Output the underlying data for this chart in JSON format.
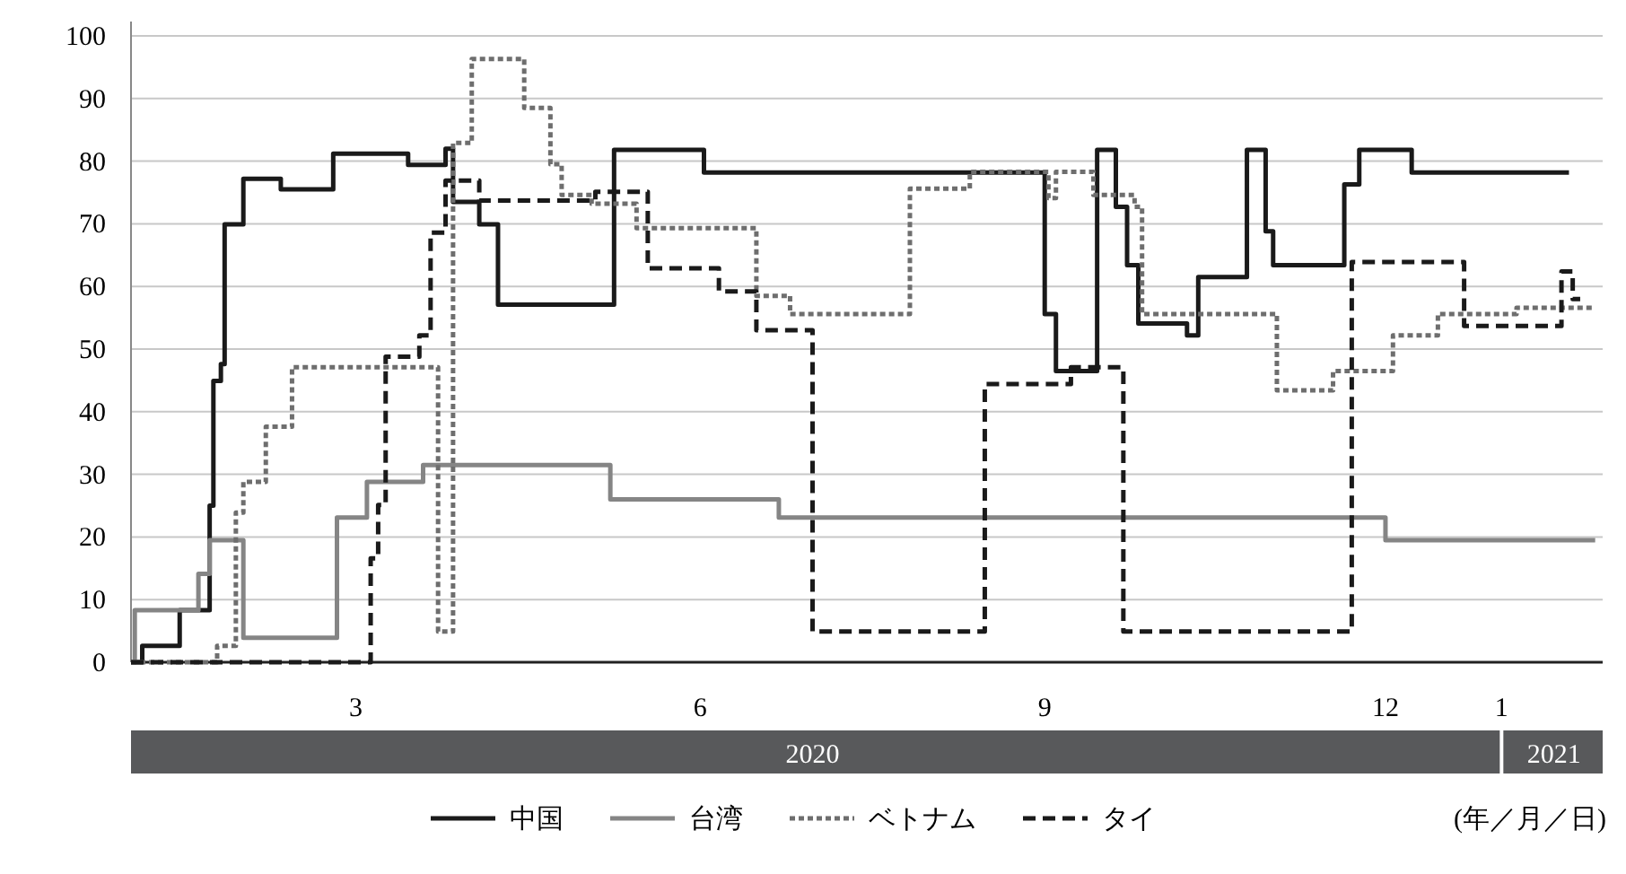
{
  "chart_data": {
    "type": "step",
    "xlabel": "(年／月／日)",
    "legend": "bottom",
    "grid": "y",
    "xlim": [
      "2020-01-01",
      "2021-01-28"
    ],
    "xticks": [
      {
        "value": "2020-03-01",
        "label": "3"
      },
      {
        "value": "2020-06-01",
        "label": "6"
      },
      {
        "value": "2020-09-01",
        "label": "9"
      },
      {
        "value": "2020-12-01",
        "label": "12"
      },
      {
        "value": "2021-01-01",
        "label": "1"
      }
    ],
    "x2lim": [
      "2020-01-01",
      "2021-01-28"
    ],
    "x2ticks": [
      {
        "value": "2020-07-01",
        "label": "2020"
      },
      {
        "value": "2021-01-15",
        "label": "2021"
      }
    ],
    "ylim": [
      0,
      100
    ],
    "yticks": [
      0,
      10,
      20,
      30,
      40,
      50,
      60,
      70,
      80,
      90,
      100
    ],
    "series": [
      {
        "name": "中国",
        "color": "#1a1a1a",
        "line_style": "solid",
        "x": [
          "2020-01-01",
          "2020-01-04",
          "2020-01-14",
          "2020-01-22",
          "2020-01-23",
          "2020-01-25",
          "2020-01-26",
          "2020-01-31",
          "2020-02-10",
          "2020-02-24",
          "2020-03-15",
          "2020-03-25",
          "2020-03-27",
          "2020-04-03",
          "2020-04-08",
          "2020-05-09",
          "2020-06-02",
          "2020-09-01",
          "2020-09-04",
          "2020-09-15",
          "2020-09-20",
          "2020-09-23",
          "2020-09-26",
          "2020-10-09",
          "2020-10-12",
          "2020-10-25",
          "2020-10-30",
          "2020-11-01",
          "2020-11-20",
          "2020-11-24",
          "2020-12-08",
          "2021-01-19"
        ],
        "values": [
          0,
          2.6,
          8.3,
          25,
          44.9,
          47.6,
          69.9,
          77.2,
          75.5,
          81.2,
          79.4,
          82,
          73.5,
          69.9,
          57.1,
          81.8,
          78.2,
          55.6,
          46.5,
          81.8,
          72.7,
          63.4,
          54.1,
          52.2,
          61.5,
          81.8,
          68.8,
          63.4,
          76.3,
          81.8,
          78.2,
          78.2
        ]
      },
      {
        "name": "台湾",
        "color": "#858585",
        "line_style": "solid",
        "x": [
          "2020-01-01",
          "2020-01-02",
          "2020-01-19",
          "2020-01-22",
          "2020-01-31",
          "2020-02-25",
          "2020-03-04",
          "2020-03-19",
          "2020-05-08",
          "2020-06-22",
          "2020-12-01",
          "2021-01-26"
        ],
        "values": [
          0,
          8.3,
          14.1,
          19.5,
          3.9,
          23.1,
          28.8,
          31.5,
          26,
          23.1,
          19.5,
          19.5
        ]
      },
      {
        "name": "ベトナム",
        "color": "#6e6e6e",
        "line_style": "dotted",
        "x": [
          "2020-01-01",
          "2020-01-24",
          "2020-01-29",
          "2020-01-31",
          "2020-02-06",
          "2020-02-13",
          "2020-03-23",
          "2020-03-27",
          "2020-04-01",
          "2020-04-15",
          "2020-04-22",
          "2020-04-25",
          "2020-05-03",
          "2020-05-15",
          "2020-06-16",
          "2020-06-25",
          "2020-07-27",
          "2020-08-12",
          "2020-09-02",
          "2020-09-04",
          "2020-09-14",
          "2020-09-25",
          "2020-09-27",
          "2020-11-02",
          "2020-11-17",
          "2020-12-03",
          "2020-12-15",
          "2021-01-05",
          "2021-01-26"
        ],
        "values": [
          0,
          2.6,
          23.9,
          28.8,
          37.6,
          47.1,
          4.9,
          82.9,
          96.3,
          88.5,
          79.5,
          74.6,
          73.2,
          69.3,
          58.5,
          55.6,
          75.6,
          78.3,
          74.1,
          78.3,
          74.6,
          72.7,
          55.6,
          43.4,
          46.5,
          52.2,
          55.6,
          56.6,
          56.6
        ]
      },
      {
        "name": "タイ",
        "color": "#1a1a1a",
        "line_style": "dashed",
        "x": [
          "2020-01-01",
          "2020-03-05",
          "2020-03-07",
          "2020-03-09",
          "2020-03-18",
          "2020-03-21",
          "2020-03-25",
          "2020-04-03",
          "2020-05-04",
          "2020-05-18",
          "2020-06-06",
          "2020-06-16",
          "2020-07-01",
          "2020-08-16",
          "2020-09-08",
          "2020-09-22",
          "2020-11-22",
          "2020-12-22",
          "2021-01-17",
          "2021-01-20",
          "2021-01-22"
        ],
        "values": [
          0,
          16.6,
          25.1,
          48.8,
          52.2,
          68.6,
          76.9,
          73.7,
          75.1,
          62.9,
          59.2,
          53,
          4.9,
          44.4,
          47.1,
          4.9,
          63.9,
          53.7,
          62.4,
          58,
          58
        ]
      }
    ]
  }
}
